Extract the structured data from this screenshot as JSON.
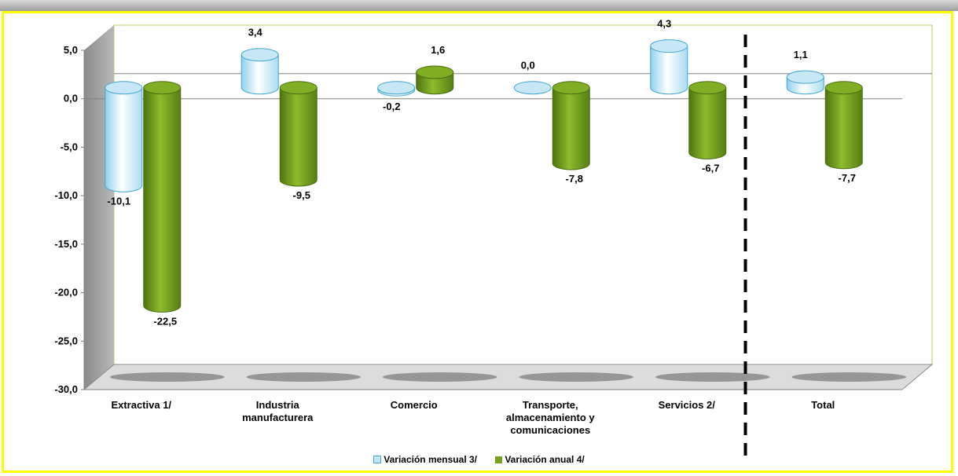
{
  "chart_data": {
    "type": "bar",
    "style": "3d-cylinder",
    "categories": [
      [
        "Extractiva 1/"
      ],
      [
        "Industria",
        "manufacturera"
      ],
      [
        "Comercio"
      ],
      [
        "Transporte,",
        "almacenamiento y",
        "comunicaciones"
      ],
      [
        "Servicios 2/"
      ],
      [
        "Total"
      ]
    ],
    "series": [
      {
        "name": "Variación mensual 3/",
        "values": [
          -10.1,
          3.4,
          -0.2,
          0.0,
          4.3,
          1.1
        ],
        "labels": [
          "-10,1",
          "3,4",
          "-0,2",
          "0,0",
          "4,3",
          "1,1"
        ],
        "color": "#bfe6f7"
      },
      {
        "name": "Variación anual 4/",
        "values": [
          -22.5,
          -9.5,
          1.6,
          -7.8,
          -6.7,
          -7.7
        ],
        "labels": [
          "-22,5",
          "-9,5",
          "1,6",
          "-7,8",
          "-6,7",
          "-7,7"
        ],
        "color": "#76a21e"
      }
    ],
    "yticks": [
      "5,0",
      "0,0",
      "-5,0",
      "-10,0",
      "-15,0",
      "-20,0",
      "-25,0",
      "-30,0"
    ],
    "ylim": [
      -30,
      5
    ],
    "grid": false,
    "legend": "bottom",
    "accent_border": "#ffff00",
    "separator": "dashed line before Total"
  }
}
